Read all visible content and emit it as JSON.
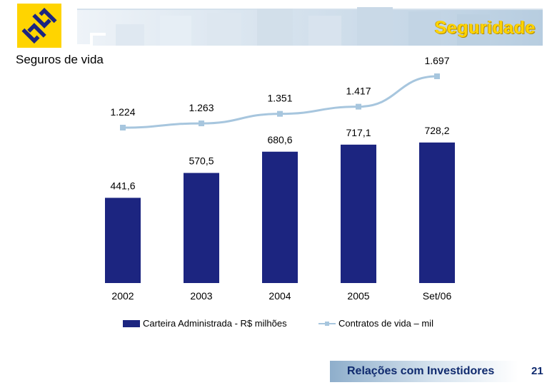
{
  "header": {
    "section_title": "Seguridade",
    "subtitle": "Seguros de vida",
    "logo_icon": "banco-do-brasil-logo-icon",
    "colors": {
      "logo_bg": "#ffd400",
      "logo_mark": "#1c2580",
      "title": "#ffd400"
    }
  },
  "chart_data": {
    "type": "bar",
    "categories": [
      "2002",
      "2003",
      "2004",
      "2005",
      "Set/06"
    ],
    "series": [
      {
        "name": "Carteira Administrada - R$ milhões",
        "type": "bar",
        "values": [
          441.6,
          570.5,
          680.6,
          717.1,
          728.2
        ],
        "labels": [
          "441,6",
          "570,5",
          "680,6",
          "717,1",
          "728,2"
        ],
        "color": "#1c2580"
      },
      {
        "name": "Contratos de vida – mil",
        "type": "line",
        "values": [
          1224,
          1263,
          1351,
          1417,
          1697
        ],
        "labels": [
          "1.224",
          "1.263",
          "1.351",
          "1.417",
          "1.697"
        ],
        "color": "#a7c6de"
      }
    ],
    "title": "",
    "xlabel": "",
    "ylabel": "",
    "grid": false,
    "legend": "bottom"
  },
  "footer": {
    "label": "Relações com Investidores",
    "page_number": "21"
  }
}
